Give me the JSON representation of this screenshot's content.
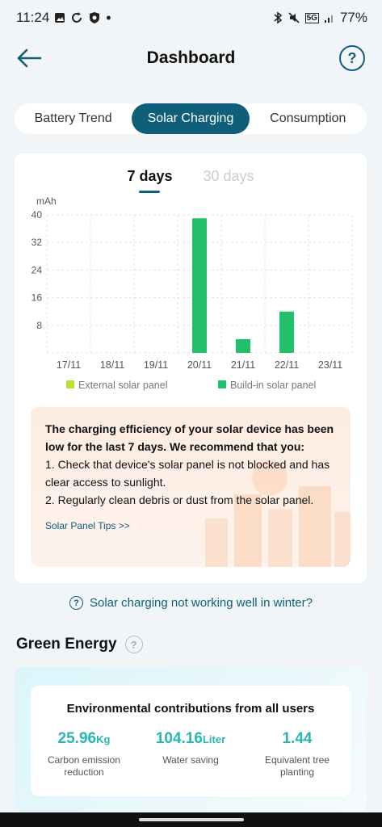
{
  "status_bar": {
    "time": "11:24",
    "network": "5G",
    "battery": "77%",
    "left_icons": [
      "gallery-icon",
      "sync-icon",
      "shield-icon",
      "dot-icon"
    ],
    "right_icons": [
      "bluetooth-icon",
      "mute-icon",
      "network-5g-icon",
      "signal-icon"
    ]
  },
  "header": {
    "title": "Dashboard"
  },
  "tabs": [
    {
      "label": "Battery Trend",
      "active": false
    },
    {
      "label": "Solar Charging",
      "active": true
    },
    {
      "label": "Consumption",
      "active": false
    }
  ],
  "range_tabs": [
    {
      "label": "7 days",
      "active": true
    },
    {
      "label": "30 days",
      "active": false
    }
  ],
  "chart_data": {
    "type": "bar",
    "ylabel": "mAh",
    "ylim": [
      0,
      40
    ],
    "yticks": [
      40,
      32,
      24,
      16,
      8
    ],
    "categories": [
      "17/11",
      "18/11",
      "19/11",
      "20/11",
      "21/11",
      "22/11",
      "23/11"
    ],
    "grid": true,
    "legend_placement": "bottom",
    "series": [
      {
        "name": "External solar panel",
        "color": "#b9e12e",
        "values": [
          0,
          0,
          0,
          0,
          0,
          0,
          0
        ]
      },
      {
        "name": "Build-in solar panel",
        "color": "#22c06a",
        "values": [
          0,
          0,
          0,
          39,
          4,
          12,
          0
        ]
      }
    ]
  },
  "tip": {
    "heading": "The charging efficiency of your solar device has been low for the last 7 days. We recommend that you:",
    "items": [
      "1. Check that device's solar panel is not blocked and has clear access to sunlight.",
      "2. Regularly clean debris or dust from the solar panel."
    ],
    "link": "Solar Panel Tips >>"
  },
  "winter_link": "Solar charging not working well in winter?",
  "green_energy": {
    "title": "Green Energy",
    "card_title": "Environmental contributions from all users",
    "metrics": [
      {
        "value": "25.96",
        "unit": "Kg",
        "label": "Carbon emission reduction"
      },
      {
        "value": "104.16",
        "unit": "Liter",
        "label": "Water saving"
      },
      {
        "value": "1.44",
        "unit": "",
        "label": "Equivalent tree planting"
      }
    ]
  },
  "colors": {
    "accent": "#0f5f7b",
    "metric": "#2ab6b0"
  }
}
